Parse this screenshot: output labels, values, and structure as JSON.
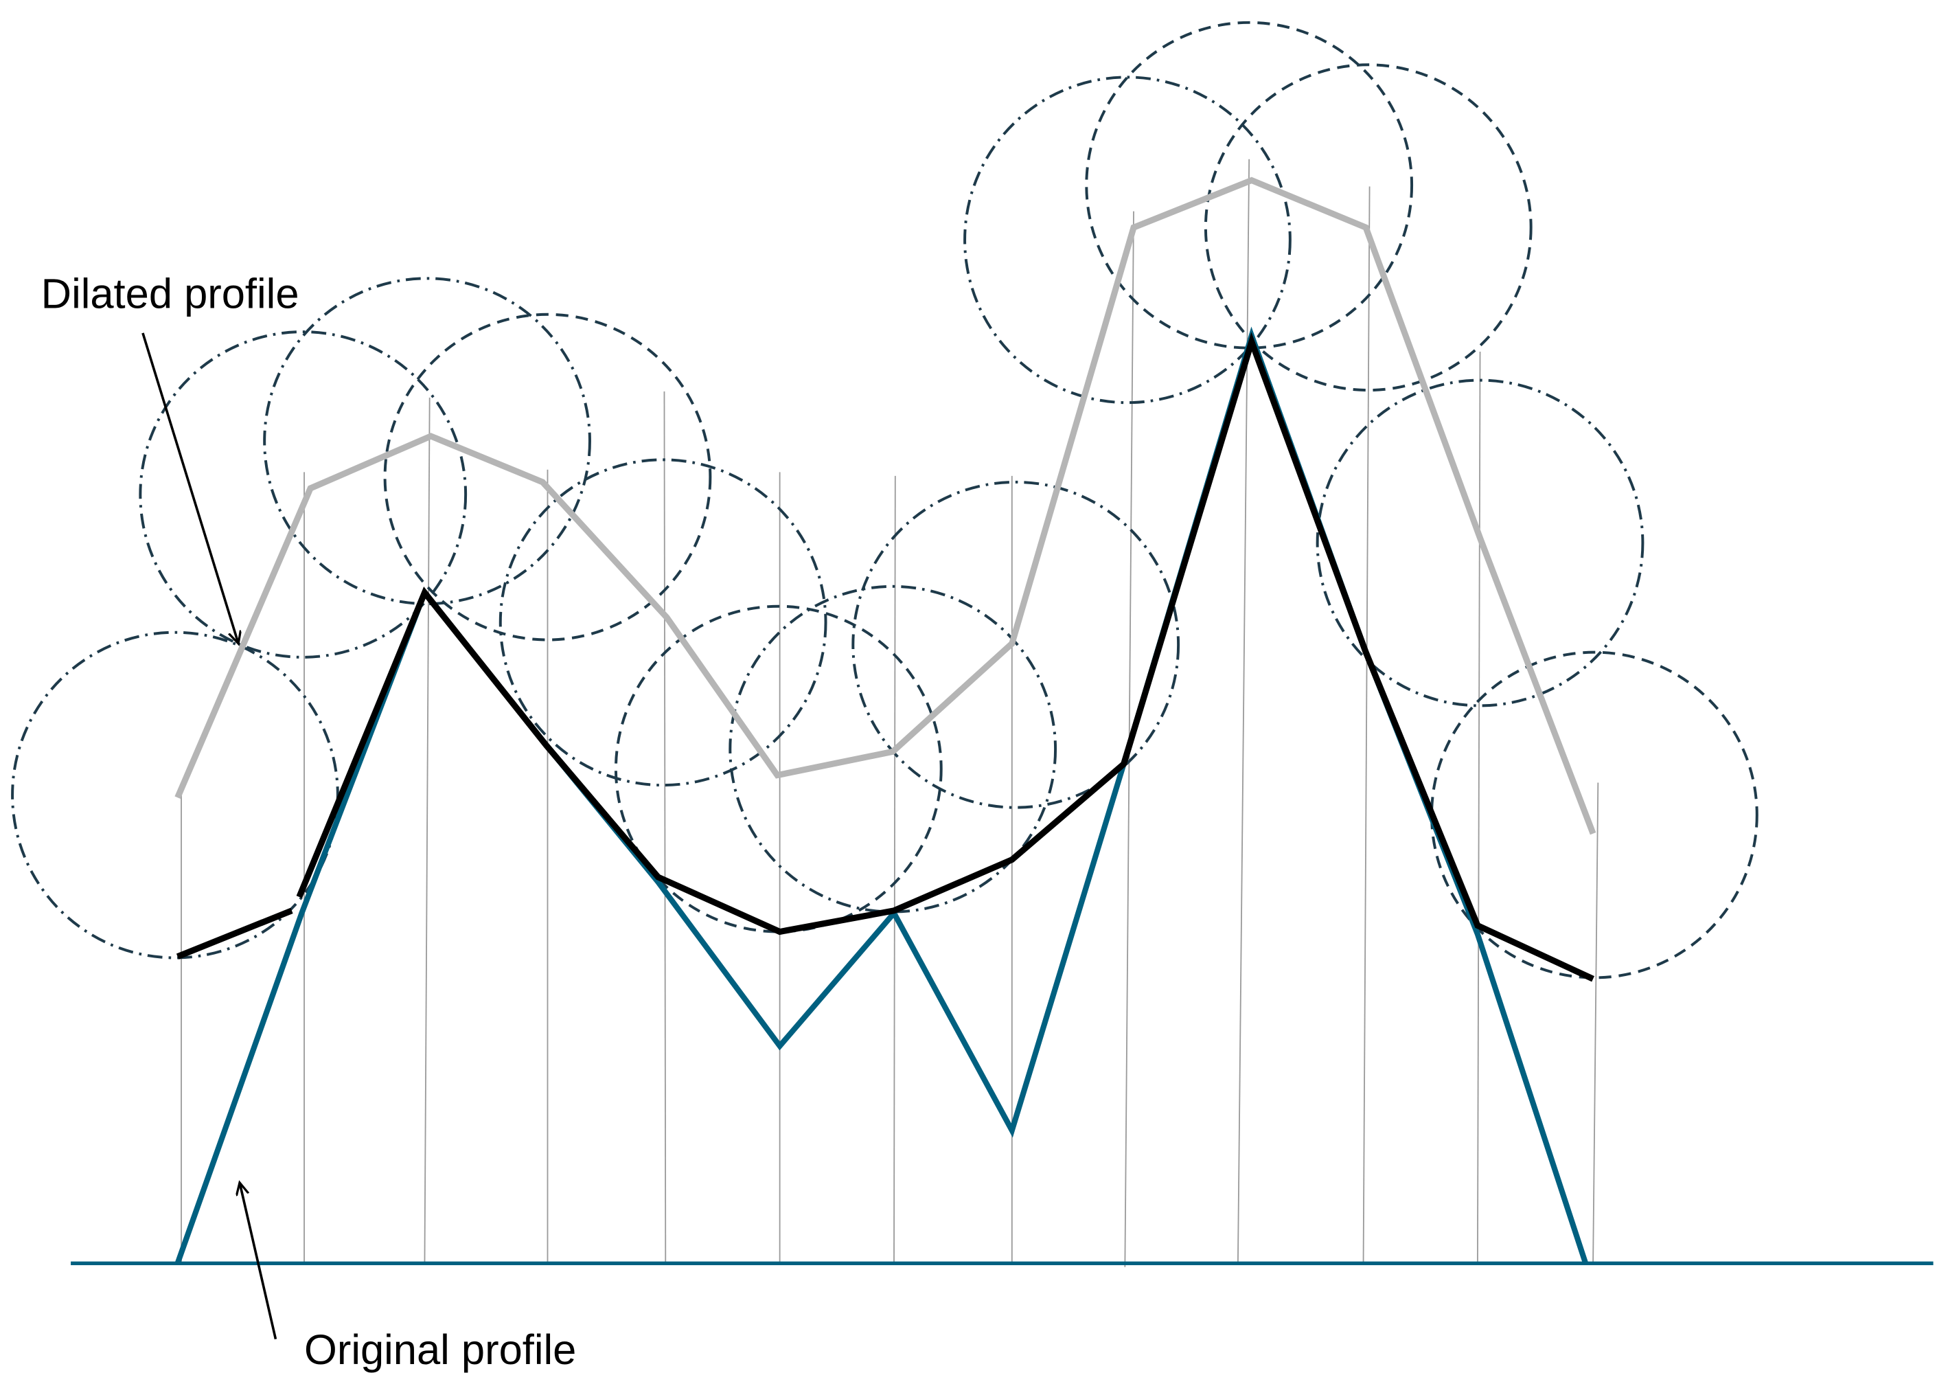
{
  "labels": {
    "dilated": "Dilated profile",
    "original": "Original profile"
  }
}
